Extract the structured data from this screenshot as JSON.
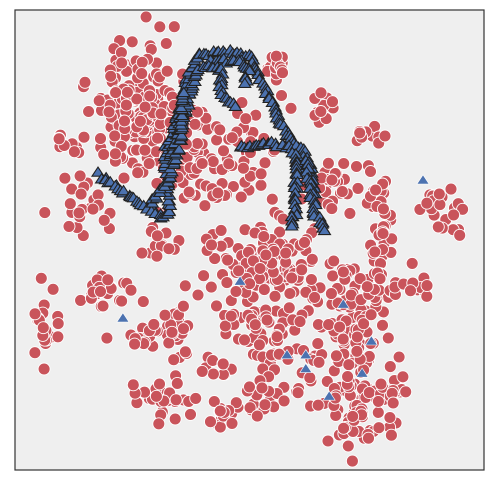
{
  "chart_data": {
    "type": "scatter",
    "title": "",
    "xlabel": "",
    "ylabel": "",
    "xlim": [
      0,
      100
    ],
    "ylim": [
      0,
      100
    ],
    "grid": false,
    "axes_ticks": false,
    "background_color": "#efefef",
    "series": [
      {
        "marker": "circle",
        "color": "#c9545b",
        "edge_color": "#ffffff",
        "clusters": [
          {
            "cx": 26,
            "cy": 80,
            "sx": 5,
            "sy": 7,
            "n": 170
          },
          {
            "cx": 56,
            "cy": 88,
            "sx": 1.5,
            "sy": 2,
            "n": 14
          },
          {
            "cx": 66,
            "cy": 80,
            "sx": 1.5,
            "sy": 2,
            "n": 12
          },
          {
            "cx": 76,
            "cy": 73,
            "sx": 2,
            "sy": 1.5,
            "n": 10
          },
          {
            "cx": 12,
            "cy": 71,
            "sx": 2,
            "sy": 1.5,
            "n": 10
          },
          {
            "cx": 15,
            "cy": 57,
            "sx": 2.5,
            "sy": 4,
            "n": 28
          },
          {
            "cx": 41,
            "cy": 68,
            "sx": 8,
            "sy": 7,
            "n": 130
          },
          {
            "cx": 67,
            "cy": 61,
            "sx": 3,
            "sy": 3.5,
            "n": 32
          },
          {
            "cx": 78,
            "cy": 55,
            "sx": 2,
            "sy": 5,
            "n": 30
          },
          {
            "cx": 91,
            "cy": 57,
            "sx": 3,
            "sy": 2.5,
            "n": 22
          },
          {
            "cx": 30,
            "cy": 49,
            "sx": 2,
            "sy": 2.5,
            "n": 14
          },
          {
            "cx": 18,
            "cy": 40,
            "sx": 2.5,
            "sy": 2.5,
            "n": 24
          },
          {
            "cx": 35,
            "cy": 32,
            "sx": 2,
            "sy": 5,
            "n": 24
          },
          {
            "cx": 7,
            "cy": 30,
            "sx": 1.8,
            "sy": 4,
            "n": 20
          },
          {
            "cx": 29,
            "cy": 29,
            "sx": 3.5,
            "sy": 2,
            "n": 22
          },
          {
            "cx": 54,
            "cy": 45,
            "sx": 6,
            "sy": 5,
            "n": 110
          },
          {
            "cx": 53,
            "cy": 31,
            "sx": 5,
            "sy": 3,
            "n": 55
          },
          {
            "cx": 71,
            "cy": 30,
            "sx": 5,
            "sy": 8,
            "n": 110
          },
          {
            "cx": 77,
            "cy": 41,
            "sx": 3,
            "sy": 3,
            "n": 30
          },
          {
            "cx": 42,
            "cy": 22,
            "sx": 2,
            "sy": 1.2,
            "n": 10
          },
          {
            "cx": 55,
            "cy": 24,
            "sx": 1.8,
            "sy": 1.5,
            "n": 12
          },
          {
            "cx": 31,
            "cy": 15,
            "sx": 3,
            "sy": 2.2,
            "n": 28
          },
          {
            "cx": 44,
            "cy": 12,
            "sx": 2,
            "sy": 2,
            "n": 16
          },
          {
            "cx": 53,
            "cy": 15,
            "sx": 2.5,
            "sy": 2.5,
            "n": 20
          },
          {
            "cx": 73,
            "cy": 12,
            "sx": 4,
            "sy": 4,
            "n": 60
          },
          {
            "cx": 81,
            "cy": 18,
            "sx": 2.5,
            "sy": 2,
            "n": 14
          },
          {
            "cx": 87,
            "cy": 40,
            "sx": 2,
            "sy": 1.5,
            "n": 10
          },
          {
            "cx": 60,
            "cy": 17,
            "sx": 1,
            "sy": 1,
            "n": 3
          },
          {
            "cx": 26,
            "cy": 38,
            "sx": 1,
            "sy": 1,
            "n": 2
          }
        ]
      },
      {
        "marker": "triangle",
        "color": "#4c72b0",
        "edge_color": "#222222",
        "paths": [
          [
            [
              18,
              64
            ],
            [
              31,
              55
            ],
            [
              33,
              56
            ],
            [
              32,
              68
            ],
            [
              35,
              78
            ],
            [
              37,
              86
            ],
            [
              39,
              90
            ],
            [
              45,
              91
            ],
            [
              50,
              90
            ],
            [
              53,
              84
            ],
            [
              57,
              75
            ],
            [
              60,
              70
            ],
            [
              61,
              65
            ]
          ],
          [
            [
              42,
              89
            ],
            [
              48,
              89
            ],
            [
              50,
              87
            ],
            [
              49,
              84
            ]
          ],
          [
            [
              33,
              68
            ],
            [
              36,
              77
            ],
            [
              39,
              87
            ]
          ],
          [
            [
              48,
              70
            ],
            [
              55,
              71
            ],
            [
              61,
              70
            ],
            [
              63,
              66
            ],
            [
              64,
              60
            ]
          ],
          [
            [
              60,
              69
            ],
            [
              60,
              60
            ],
            [
              59,
              53
            ]
          ],
          [
            [
              62,
              68
            ],
            [
              63,
              62
            ],
            [
              64,
              55
            ],
            [
              66,
              52
            ]
          ],
          [
            [
              29,
              58
            ],
            [
              32,
              62
            ],
            [
              35,
              70
            ],
            [
              36,
              82
            ]
          ],
          [
            [
              40,
              88
            ],
            [
              44,
              87
            ],
            [
              44,
              82
            ],
            [
              47,
              79
            ]
          ]
        ],
        "points": [
          [
            87,
            63
          ],
          [
            48,
            41
          ],
          [
            70,
            36
          ],
          [
            23,
            33
          ],
          [
            76,
            28
          ],
          [
            58,
            25
          ],
          [
            62,
            25
          ],
          [
            74,
            21
          ],
          [
            67,
            16
          ],
          [
            62,
            22
          ]
        ]
      }
    ]
  }
}
